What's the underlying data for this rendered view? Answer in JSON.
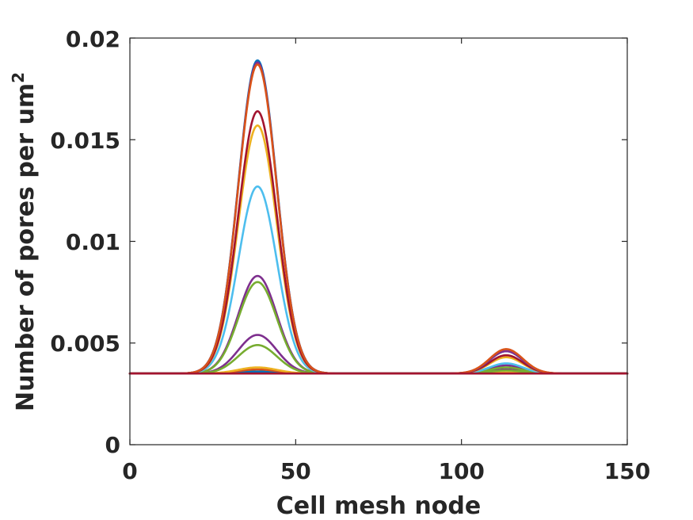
{
  "chart_data": {
    "type": "line",
    "title": "",
    "xlabel": "Cell mesh node",
    "ylabel": "Number of pores per um",
    "ylabel_superscript": "2",
    "xlim": [
      0,
      150
    ],
    "ylim": [
      0,
      0.02
    ],
    "xticks": [
      0,
      50,
      100,
      150
    ],
    "xtick_labels": [
      "0",
      "50",
      "100",
      "150"
    ],
    "yticks": [
      0,
      0.005,
      0.01,
      0.015,
      0.02
    ],
    "ytick_labels": [
      "0",
      "0.005",
      "0.01",
      "0.015",
      "0.02"
    ],
    "grid": false,
    "legend": "none",
    "baseline": 0.0035,
    "peak1_center": 38.5,
    "peak1_width": 5.8,
    "peak2_center": 113.5,
    "peak2_width": 5.0,
    "series": [
      {
        "color": "#0072BD",
        "peak1": 0.0036,
        "peak2": 0.0035
      },
      {
        "color": "#D95319",
        "peak1": 0.0037,
        "peak2": 0.0035
      },
      {
        "color": "#EDB120",
        "peak1": 0.0038,
        "peak2": 0.00355
      },
      {
        "color": "#7E2F8E",
        "peak1": 0.0054,
        "peak2": 0.0037
      },
      {
        "color": "#77AC30",
        "peak1": 0.0049,
        "peak2": 0.00365
      },
      {
        "color": "#7E2F8E",
        "peak1": 0.0083,
        "peak2": 0.0039
      },
      {
        "color": "#77AC30",
        "peak1": 0.008,
        "peak2": 0.0038
      },
      {
        "color": "#4DBEEE",
        "peak1": 0.0127,
        "peak2": 0.004
      },
      {
        "color": "#EDB120",
        "peak1": 0.0157,
        "peak2": 0.0043
      },
      {
        "color": "#A2142F",
        "peak1": 0.0164,
        "peak2": 0.0044
      },
      {
        "color": "#0072BD",
        "peak1": 0.0189,
        "peak2": 0.0046
      },
      {
        "color": "#7E2F8E",
        "peak1": 0.0188,
        "peak2": 0.0046
      },
      {
        "color": "#D95319",
        "peak1": 0.0187,
        "peak2": 0.0047
      },
      {
        "color": "#A2142F",
        "peak1": 0.0035,
        "peak2": 0.0035
      }
    ]
  }
}
